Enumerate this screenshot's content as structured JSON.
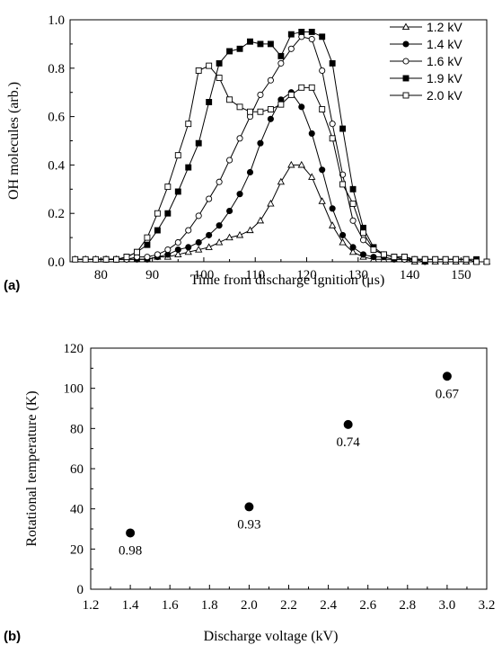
{
  "chart_data": [
    {
      "type": "line",
      "panel_label": "(a)",
      "xlabel": "Time from discharge ignition (μs)",
      "ylabel": "OH molecules (arb.)",
      "xlim": [
        74,
        155
      ],
      "ylim": [
        0,
        1.0
      ],
      "xticks": [
        80,
        90,
        100,
        110,
        120,
        130,
        140,
        150
      ],
      "yticks": [
        0.0,
        0.2,
        0.4,
        0.6,
        0.8,
        1.0
      ],
      "ytick_labels": [
        "0.0",
        "0.2",
        "0.4",
        "0.6",
        "0.8",
        "1.0"
      ],
      "legend_position": "top-right",
      "series": [
        {
          "name": "1.2 kV",
          "marker": "triangle-open",
          "x": [
            75,
            77,
            79,
            81,
            83,
            85,
            87,
            89,
            91,
            93,
            95,
            97,
            99,
            101,
            103,
            105,
            107,
            109,
            111,
            113,
            115,
            117,
            119,
            121,
            123,
            125,
            127,
            129,
            131,
            133,
            135,
            137,
            139,
            141,
            143,
            145,
            147,
            149,
            151,
            153,
            155
          ],
          "y": [
            0.01,
            0.01,
            0.01,
            0.01,
            0.01,
            0.01,
            0.01,
            0.01,
            0.02,
            0.02,
            0.03,
            0.04,
            0.05,
            0.06,
            0.08,
            0.1,
            0.11,
            0.13,
            0.17,
            0.24,
            0.33,
            0.4,
            0.4,
            0.35,
            0.25,
            0.15,
            0.08,
            0.04,
            0.02,
            0.01,
            0.01,
            0.01,
            0.01,
            0.0,
            0.0,
            0.0,
            0.0,
            0.0,
            0.0,
            0.0,
            0.0
          ]
        },
        {
          "name": "1.4 kV",
          "marker": "circle-filled",
          "x": [
            79,
            81,
            83,
            85,
            87,
            89,
            91,
            93,
            95,
            97,
            99,
            101,
            103,
            105,
            107,
            109,
            111,
            113,
            115,
            117,
            119,
            121,
            123,
            125,
            127,
            129,
            131,
            133,
            135,
            137,
            139,
            141,
            143
          ],
          "y": [
            0.01,
            0.01,
            0.01,
            0.01,
            0.01,
            0.01,
            0.02,
            0.03,
            0.05,
            0.06,
            0.08,
            0.11,
            0.15,
            0.21,
            0.28,
            0.37,
            0.49,
            0.59,
            0.67,
            0.7,
            0.64,
            0.53,
            0.38,
            0.22,
            0.11,
            0.06,
            0.03,
            0.02,
            0.02,
            0.01,
            0.01,
            0.01,
            0.0
          ]
        },
        {
          "name": "1.6 kV",
          "marker": "circle-open",
          "x": [
            81,
            83,
            85,
            87,
            89,
            91,
            93,
            95,
            97,
            99,
            101,
            103,
            105,
            107,
            109,
            111,
            113,
            115,
            117,
            119,
            121,
            123,
            125,
            127,
            129,
            131,
            133,
            135,
            137,
            139,
            141,
            143
          ],
          "y": [
            0.01,
            0.01,
            0.01,
            0.02,
            0.02,
            0.03,
            0.05,
            0.08,
            0.13,
            0.19,
            0.26,
            0.33,
            0.42,
            0.51,
            0.6,
            0.69,
            0.75,
            0.82,
            0.88,
            0.93,
            0.92,
            0.79,
            0.57,
            0.36,
            0.17,
            0.09,
            0.05,
            0.03,
            0.02,
            0.01,
            0.01,
            0.01
          ]
        },
        {
          "name": "1.9 kV",
          "marker": "square-filled",
          "x": [
            81,
            83,
            85,
            87,
            89,
            91,
            93,
            95,
            97,
            99,
            101,
            103,
            105,
            107,
            109,
            111,
            113,
            115,
            117,
            119,
            121,
            123,
            125,
            127,
            129,
            131,
            133,
            135,
            137,
            139,
            141,
            143,
            145,
            147,
            149,
            151,
            153
          ],
          "y": [
            0.01,
            0.01,
            0.02,
            0.04,
            0.07,
            0.13,
            0.2,
            0.29,
            0.39,
            0.49,
            0.66,
            0.82,
            0.87,
            0.88,
            0.91,
            0.9,
            0.9,
            0.85,
            0.94,
            0.95,
            0.95,
            0.93,
            0.82,
            0.55,
            0.3,
            0.14,
            0.06,
            0.03,
            0.02,
            0.02,
            0.01,
            0.01,
            0.01,
            0.01,
            0.01,
            0.01,
            0.01
          ]
        },
        {
          "name": "2.0 kV",
          "marker": "square-open",
          "x": [
            75,
            77,
            79,
            81,
            83,
            85,
            87,
            89,
            91,
            93,
            95,
            97,
            99,
            101,
            103,
            105,
            107,
            109,
            111,
            113,
            115,
            117,
            119,
            121,
            123,
            125,
            127,
            129,
            131,
            133,
            135,
            137,
            139,
            141,
            143,
            145,
            147,
            149,
            151,
            153,
            155
          ],
          "y": [
            0.01,
            0.01,
            0.01,
            0.01,
            0.01,
            0.02,
            0.04,
            0.1,
            0.2,
            0.31,
            0.44,
            0.57,
            0.79,
            0.81,
            0.76,
            0.67,
            0.64,
            0.62,
            0.62,
            0.63,
            0.65,
            0.69,
            0.72,
            0.72,
            0.63,
            0.51,
            0.32,
            0.24,
            0.12,
            0.05,
            0.03,
            0.02,
            0.02,
            0.01,
            0.01,
            0.01,
            0.01,
            0.01,
            0.01,
            0.0,
            0.0
          ]
        }
      ]
    },
    {
      "type": "scatter",
      "panel_label": "(b)",
      "xlabel": "Discharge voltage (kV)",
      "ylabel": "Rotational temperature (K)",
      "xlim": [
        1.2,
        3.2
      ],
      "ylim": [
        0,
        120
      ],
      "xticks": [
        1.2,
        1.4,
        1.6,
        1.8,
        2.0,
        2.2,
        2.4,
        2.6,
        2.8,
        3.0,
        3.2
      ],
      "xtick_labels": [
        "1.2",
        "1.4",
        "1.6",
        "1.8",
        "2.0",
        "2.2",
        "2.4",
        "2.6",
        "2.8",
        "3.0",
        "3.2"
      ],
      "yticks": [
        0,
        20,
        40,
        60,
        80,
        100,
        120
      ],
      "ytick_labels": [
        "0",
        "20",
        "40",
        "60",
        "80",
        "100",
        "120"
      ],
      "points": [
        {
          "x": 1.4,
          "y": 28,
          "label": "0.98"
        },
        {
          "x": 2.0,
          "y": 41,
          "label": "0.93"
        },
        {
          "x": 2.5,
          "y": 82,
          "label": "0.74"
        },
        {
          "x": 3.0,
          "y": 106,
          "label": "0.67"
        }
      ]
    }
  ]
}
